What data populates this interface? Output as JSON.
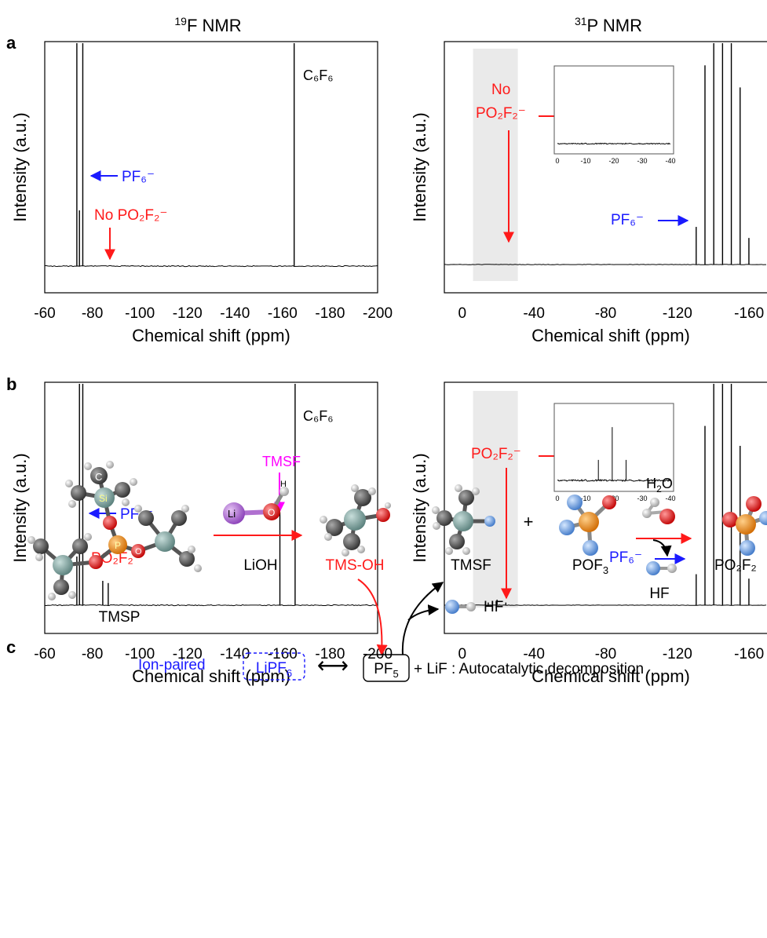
{
  "colors": {
    "axis": "#000000",
    "pf6": "#1a1aff",
    "po2f2": "#ff1a1a",
    "tmsf": "#ff00ff",
    "shade": "#d9d9d9",
    "li": "#b070d0",
    "oxygen": "#e01010",
    "phosphorus": "#ee8a1a",
    "silicon": "#7a9e9a",
    "carbon": "#555555",
    "fluorine": "#6aa0e0",
    "hydrogen": "#dddddd"
  },
  "headers": {
    "f19": {
      "sup": "19",
      "main": "F NMR"
    },
    "p31": {
      "sup": "31",
      "main": "P NMR"
    }
  },
  "panel_labels": {
    "a": "a",
    "b": "b",
    "c": "c"
  },
  "chart_data": [
    {
      "id": "a-f19",
      "type": "line",
      "xlabel": "Chemical shift (ppm)",
      "ylabel": "Intensity (a.u.)",
      "xlim": [
        -60,
        -200
      ],
      "xticks": [
        -60,
        -80,
        -100,
        -120,
        -140,
        -160,
        -180,
        -200
      ],
      "peaks": [
        {
          "x": -73.5,
          "h": 1.0
        },
        {
          "x": -74.6,
          "h": 0.25
        },
        {
          "x": -76.0,
          "h": 1.0
        },
        {
          "x": -164.9,
          "h": 1.0
        }
      ],
      "annotations": [
        {
          "kind": "label",
          "text": "C₆F₆",
          "color": "#000000"
        },
        {
          "kind": "label",
          "text": "PF₆⁻",
          "color": "#1a1aff",
          "arrow": "left"
        },
        {
          "kind": "label",
          "text": "No PO₂F₂⁻",
          "color": "#ff1a1a",
          "arrow": "down"
        }
      ]
    },
    {
      "id": "a-p31",
      "type": "line",
      "xlabel": "Chemical shift (ppm)",
      "ylabel": "Intensity (a.u.)",
      "xlim": [
        10,
        -170
      ],
      "xticks": [
        0,
        -40,
        -80,
        -120,
        -160
      ],
      "peaks": [
        {
          "x": -130.5,
          "h": 0.17
        },
        {
          "x": -135.4,
          "h": 0.9
        },
        {
          "x": -140.3,
          "h": 1.0
        },
        {
          "x": -145.2,
          "h": 1.0
        },
        {
          "x": -150.1,
          "h": 1.0
        },
        {
          "x": -155.0,
          "h": 0.8
        },
        {
          "x": -159.9,
          "h": 0.12
        }
      ],
      "shaded_range": [
        -6,
        -31
      ],
      "annotations": [
        {
          "kind": "label",
          "text": "No",
          "color": "#ff1a1a"
        },
        {
          "kind": "label",
          "text": "PO₂F₂⁻",
          "color": "#ff1a1a",
          "arrow": "right"
        },
        {
          "kind": "label",
          "text": "PF₆⁻",
          "color": "#1a1aff",
          "arrow": "right"
        }
      ],
      "inset": {
        "xlim": [
          0,
          -40
        ],
        "xticks": [
          "0",
          "-10",
          "-20",
          "-30",
          "-40"
        ],
        "peaks": []
      }
    },
    {
      "id": "b-f19",
      "type": "line",
      "xlabel": "Chemical shift (ppm)",
      "ylabel": "Intensity (a.u.)",
      "xlim": [
        -60,
        -200
      ],
      "xticks": [
        -60,
        -80,
        -100,
        -120,
        -140,
        -160,
        -180,
        -200
      ],
      "peaks": [
        {
          "x": -73.5,
          "h": 0.22
        },
        {
          "x": -74.6,
          "h": 1.0
        },
        {
          "x": -76.0,
          "h": 1.0
        },
        {
          "x": -84.4,
          "h": 0.11
        },
        {
          "x": -86.7,
          "h": 0.1
        },
        {
          "x": -158.9,
          "h": 0.42
        },
        {
          "x": -165.3,
          "h": 1.0
        }
      ],
      "annotations": [
        {
          "kind": "label",
          "text": "C₆F₆",
          "color": "#000000"
        },
        {
          "kind": "label",
          "text": "TMSF",
          "color": "#ff00ff",
          "arrow": "down"
        },
        {
          "kind": "label",
          "text": "PF₆⁻",
          "color": "#1a1aff",
          "arrow": "left"
        },
        {
          "kind": "label",
          "text": "PO₂F₂⁻",
          "color": "#ff1a1a"
        }
      ]
    },
    {
      "id": "b-p31",
      "type": "line",
      "xlabel": "Chemical shift (ppm)",
      "ylabel": "Intensity (a.u.)",
      "xlim": [
        10,
        -170
      ],
      "xticks": [
        0,
        -40,
        -80,
        -120,
        -160
      ],
      "peaks": [
        {
          "x": -14.5,
          "h": 0.012
        },
        {
          "x": -19.4,
          "h": 0.025
        },
        {
          "x": -24.3,
          "h": 0.012
        },
        {
          "x": -130.5,
          "h": 0.14
        },
        {
          "x": -135.4,
          "h": 0.81
        },
        {
          "x": -140.3,
          "h": 1.0
        },
        {
          "x": -145.2,
          "h": 1.0
        },
        {
          "x": -150.1,
          "h": 1.0
        },
        {
          "x": -155.0,
          "h": 0.72
        },
        {
          "x": -159.9,
          "h": 0.12
        }
      ],
      "shaded_range": [
        -6,
        -31
      ],
      "annotations": [
        {
          "kind": "label",
          "text": "PO₂F₂⁻",
          "color": "#ff1a1a",
          "arrow": "right"
        },
        {
          "kind": "label",
          "text": "PF₆⁻",
          "color": "#1a1aff",
          "arrow": "right"
        }
      ],
      "inset": {
        "xlim": [
          0,
          -40
        ],
        "xticks": [
          "0",
          "-10",
          "-20",
          "-30",
          "-40"
        ],
        "peaks": [
          {
            "x": -14.5,
            "h": 0.3
          },
          {
            "x": -19.4,
            "h": 0.78
          },
          {
            "x": -24.3,
            "h": 0.3
          }
        ]
      }
    }
  ],
  "scheme": {
    "tmsp": "TMSP",
    "lioh": "LiOH",
    "tms_oh": "TMS-OH",
    "tmsf": "TMSF",
    "plus": "+",
    "pof3_main": "POF",
    "pof3_sub": "3",
    "h2o_main": "H",
    "h2o_sub": "2",
    "h2o_tail": "O",
    "hf_top": "HF",
    "hf_bottom": "HF",
    "po2f2": "PO₂F₂",
    "atom_c": "C",
    "atom_si": "Si",
    "atom_p": "P",
    "atom_o": "O",
    "atom_li": "Li",
    "atom_h": "H",
    "ion_paired": "Ion-paired",
    "lipf6_main": "LiPF",
    "lipf6_sub": "6",
    "double_arrow": "⟷",
    "pf5_main": "PF",
    "pf5_sub": "5",
    "tail": "+ LiF : Autocatalytic decomposition"
  }
}
